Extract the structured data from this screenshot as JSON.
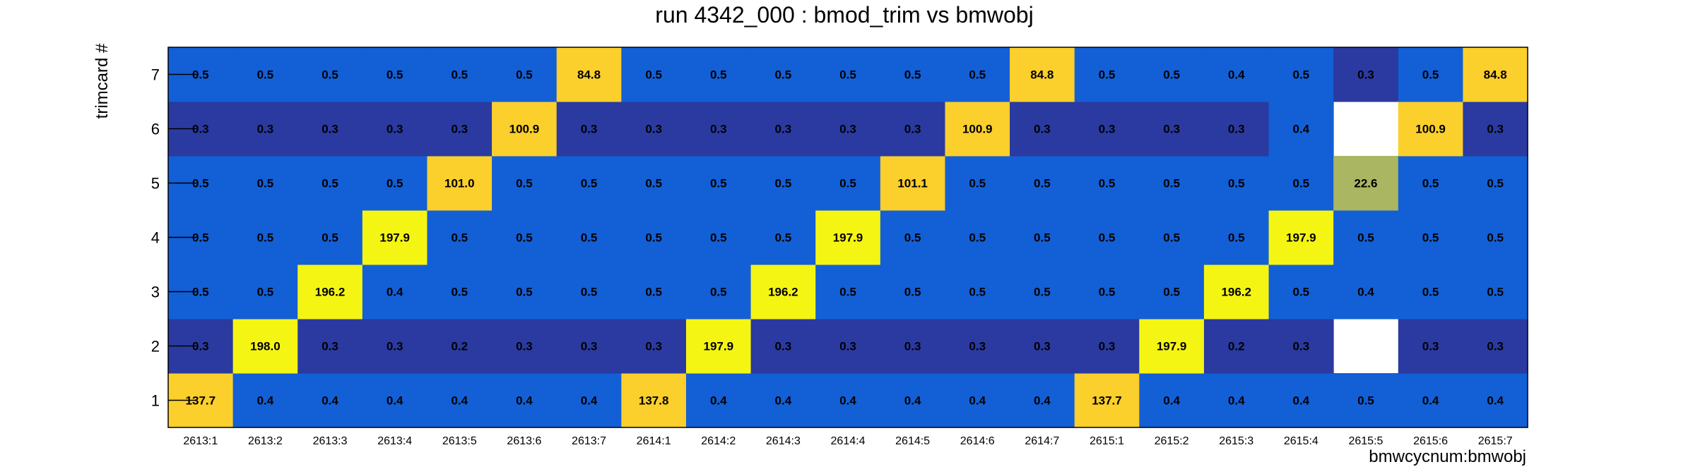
{
  "chart_data": {
    "type": "heatmap",
    "title": "run 4342_000 : bmod_trim vs bmwobj",
    "xlabel": "bmwcycnum:bmwobj",
    "ylabel": "trimcard #",
    "x_categories": [
      "2613:1",
      "2613:2",
      "2613:3",
      "2613:4",
      "2613:5",
      "2613:6",
      "2613:7",
      "2614:1",
      "2614:2",
      "2614:3",
      "2614:4",
      "2614:5",
      "2614:6",
      "2614:7",
      "2615:1",
      "2615:2",
      "2615:3",
      "2615:4",
      "2615:5",
      "2615:6",
      "2615:7"
    ],
    "y_categories": [
      "1",
      "2",
      "3",
      "4",
      "5",
      "6",
      "7"
    ],
    "values": [
      [
        "137.7",
        "0.4",
        "0.4",
        "0.4",
        "0.4",
        "0.4",
        "0.4",
        "137.8",
        "0.4",
        "0.4",
        "0.4",
        "0.4",
        "0.4",
        "0.4",
        "137.7",
        "0.4",
        "0.4",
        "0.4",
        "0.5",
        "0.4",
        "0.4"
      ],
      [
        "0.3",
        "198.0",
        "0.3",
        "0.3",
        "0.2",
        "0.3",
        "0.3",
        "0.3",
        "197.9",
        "0.3",
        "0.3",
        "0.3",
        "0.3",
        "0.3",
        "0.3",
        "197.9",
        "0.2",
        "0.3",
        null,
        "0.3",
        "0.3"
      ],
      [
        "0.5",
        "0.5",
        "196.2",
        "0.4",
        "0.5",
        "0.5",
        "0.5",
        "0.5",
        "0.5",
        "196.2",
        "0.5",
        "0.5",
        "0.5",
        "0.5",
        "0.5",
        "0.5",
        "196.2",
        "0.5",
        "0.4",
        "0.5",
        "0.5"
      ],
      [
        "0.5",
        "0.5",
        "0.5",
        "197.9",
        "0.5",
        "0.5",
        "0.5",
        "0.5",
        "0.5",
        "0.5",
        "197.9",
        "0.5",
        "0.5",
        "0.5",
        "0.5",
        "0.5",
        "0.5",
        "197.9",
        "0.5",
        "0.5",
        "0.5"
      ],
      [
        "0.5",
        "0.5",
        "0.5",
        "0.5",
        "101.0",
        "0.5",
        "0.5",
        "0.5",
        "0.5",
        "0.5",
        "0.5",
        "101.1",
        "0.5",
        "0.5",
        "0.5",
        "0.5",
        "0.5",
        "0.5",
        "22.6",
        "0.5",
        "0.5"
      ],
      [
        "0.3",
        "0.3",
        "0.3",
        "0.3",
        "0.3",
        "100.9",
        "0.3",
        "0.3",
        "0.3",
        "0.3",
        "0.3",
        "0.3",
        "100.9",
        "0.3",
        "0.3",
        "0.3",
        "0.3",
        "0.4",
        null,
        "100.9",
        "0.3"
      ],
      [
        "0.5",
        "0.5",
        "0.5",
        "0.5",
        "0.5",
        "0.5",
        "84.8",
        "0.5",
        "0.5",
        "0.5",
        "0.5",
        "0.5",
        "0.5",
        "84.8",
        "0.5",
        "0.5",
        "0.4",
        "0.5",
        "0.3",
        "0.5",
        "84.8"
      ]
    ],
    "colors": {
      "low": "#2a3aa0",
      "mid": "#135fd6",
      "high": "#f5f514",
      "upper": "#fbcf2c",
      "olive": "#aab662"
    },
    "grid": false,
    "legend": "none"
  }
}
